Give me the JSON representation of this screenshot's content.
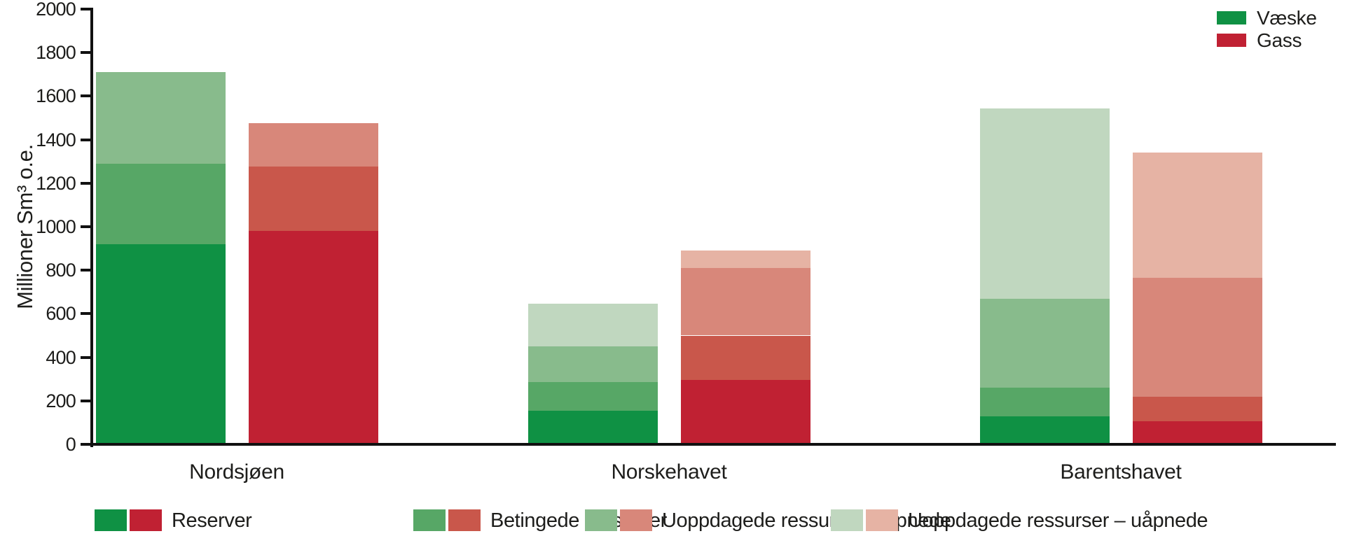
{
  "chart_data": {
    "type": "bar",
    "stacked": true,
    "title": "",
    "ylabel": "Millioner Sm³ o.e.",
    "xlabel": "",
    "ylim": [
      0,
      2000
    ],
    "ytick_step": 200,
    "grid": false,
    "unit": "Millioner Sm³ o.e.",
    "categories": [
      "Nordsjøen",
      "Norskehavet",
      "Barentshavet"
    ],
    "series": [
      {
        "name": "Væske",
        "color": "#0F9144",
        "segment_colors": [
          "#0F9144",
          "#57A766",
          "#88BB8C",
          "#C0D7BF"
        ],
        "segments": [
          {
            "label": "Reserver",
            "values": [
              920,
              155,
              130
            ]
          },
          {
            "label": "Betingede ressurser",
            "values": [
              370,
              130,
              130
            ]
          },
          {
            "label": "Uoppdagede ressurser – åpnede",
            "values": [
              420,
              165,
              410
            ]
          },
          {
            "label": "Uoppdagede ressurser – uåpnede",
            "values": [
              0,
              195,
              875
            ]
          }
        ]
      },
      {
        "name": "Gass",
        "color": "#C02133",
        "segment_colors": [
          "#C02133",
          "#C9574B",
          "#D8877A",
          "#E6B3A4"
        ],
        "segments": [
          {
            "label": "Reserver",
            "values": [
              980,
              295,
              105
            ]
          },
          {
            "label": "Betingede ressurser",
            "values": [
              295,
              205,
              115
            ]
          },
          {
            "label": "Uoppdagede ressurser – åpnede",
            "values": [
              200,
              310,
              545
            ]
          },
          {
            "label": "Uoppdagede ressurser – uåpnede",
            "values": [
              0,
              80,
              575
            ]
          }
        ]
      }
    ],
    "legend_top": [
      {
        "label": "Væske",
        "color": "#0F9144"
      },
      {
        "label": "Gass",
        "color": "#C02133"
      }
    ],
    "legend_bottom": [
      {
        "label": "Reserver",
        "colors": [
          "#0F9144",
          "#C02133"
        ]
      },
      {
        "label": "Betingede ressurser",
        "colors": [
          "#57A766",
          "#C9574B"
        ]
      },
      {
        "label": "Uoppdagede ressurser – åpnede",
        "colors": [
          "#88BB8C",
          "#D8877A"
        ]
      },
      {
        "label": "Uoppdagede ressurser – uåpnede",
        "colors": [
          "#C0D7BF",
          "#E6B3A4"
        ]
      }
    ],
    "legend_position": {
      "top_right": [
        "Væske",
        "Gass"
      ],
      "bottom": [
        "Reserver",
        "Betingede ressurser",
        "Uoppdagede ressurser – åpnede",
        "Uoppdagede ressurser – uåpnede"
      ]
    }
  },
  "axis": {
    "text_color": "#1D1D1B",
    "line_color": "#111111"
  }
}
